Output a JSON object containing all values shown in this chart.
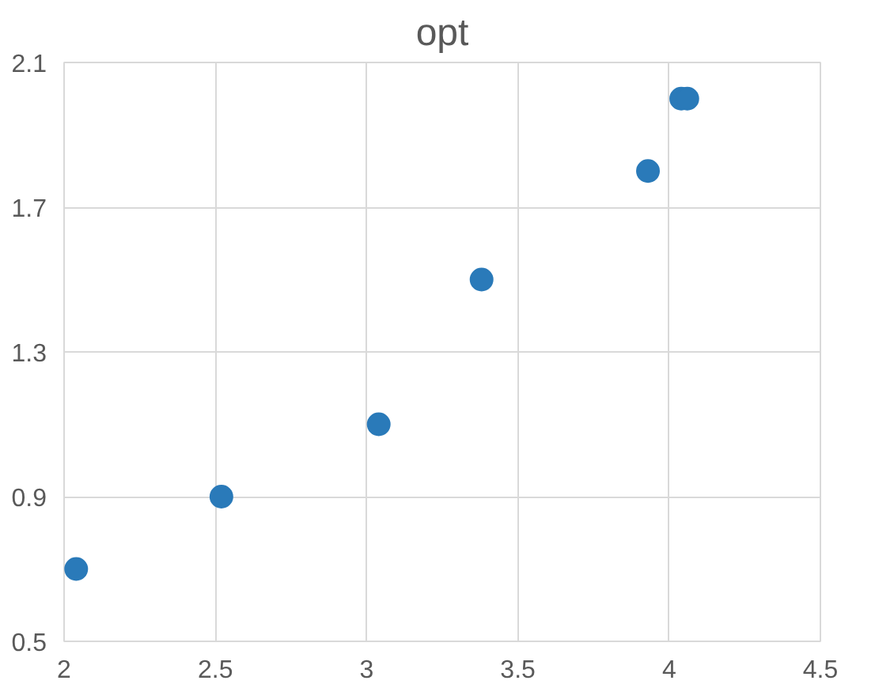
{
  "chart_data": {
    "type": "scatter",
    "title": "opt",
    "x": [
      2.04,
      2.52,
      3.04,
      3.38,
      3.93,
      4.04,
      4.06
    ],
    "series": [
      {
        "color": "#2a7ab9",
        "values": [
          0.7,
          0.9,
          1.1,
          1.5,
          1.8,
          2.0,
          2.0
        ]
      }
    ],
    "xlim": [
      2,
      4.5
    ],
    "xticks": [
      2,
      2.5,
      3,
      3.5,
      4,
      4.5
    ],
    "ylim": [
      0.5,
      2.1
    ],
    "yticks": [
      0.5,
      0.9,
      1.3,
      1.7,
      2.1
    ],
    "grid": true,
    "marker": "circle"
  }
}
